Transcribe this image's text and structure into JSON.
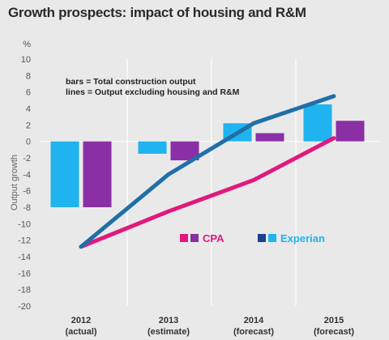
{
  "chart_data": {
    "type": "bar",
    "title": "Growth prospects: impact of housing and R&M",
    "unit_label": "%",
    "ylabel": "Output growth",
    "ylim": [
      -20,
      10
    ],
    "yticks": [
      10,
      8,
      6,
      4,
      2,
      0,
      -2,
      -4,
      -6,
      -8,
      -10,
      -12,
      -14,
      -16,
      -18,
      -20
    ],
    "categories": [
      "2012",
      "2013",
      "2014",
      "2015"
    ],
    "category_sublabels": [
      "(actual)",
      "(estimate)",
      "(forecast)",
      "(forecast)"
    ],
    "notes": [
      "bars = Total construction output",
      "lines = Output excluding housing and R&M"
    ],
    "bar_series": [
      {
        "name": "Experian",
        "color": "#1fb3ef",
        "values": [
          -8,
          -1.5,
          2.2,
          4.5
        ]
      },
      {
        "name": "CPA",
        "color": "#8b2fa6",
        "values": [
          -8,
          -2.3,
          1.0,
          2.5
        ]
      }
    ],
    "line_series": [
      {
        "name": "Experian",
        "color": "#1f6fa8",
        "values": [
          -12.8,
          -4,
          2.2,
          5.5
        ]
      },
      {
        "name": "CPA",
        "color": "#e0197d",
        "values": [
          -12.8,
          -8.5,
          -4.7,
          0.4
        ]
      }
    ],
    "legend": [
      {
        "label": "CPA",
        "colors": [
          "#e0197d",
          "#8b2fa6"
        ],
        "text_color": "#e0197d"
      },
      {
        "label": "Experian",
        "colors": [
          "#1f3f8f",
          "#1fb3ef"
        ],
        "text_color": "#1fb3ef"
      }
    ],
    "legend_position": "lower-right",
    "grid": true
  }
}
